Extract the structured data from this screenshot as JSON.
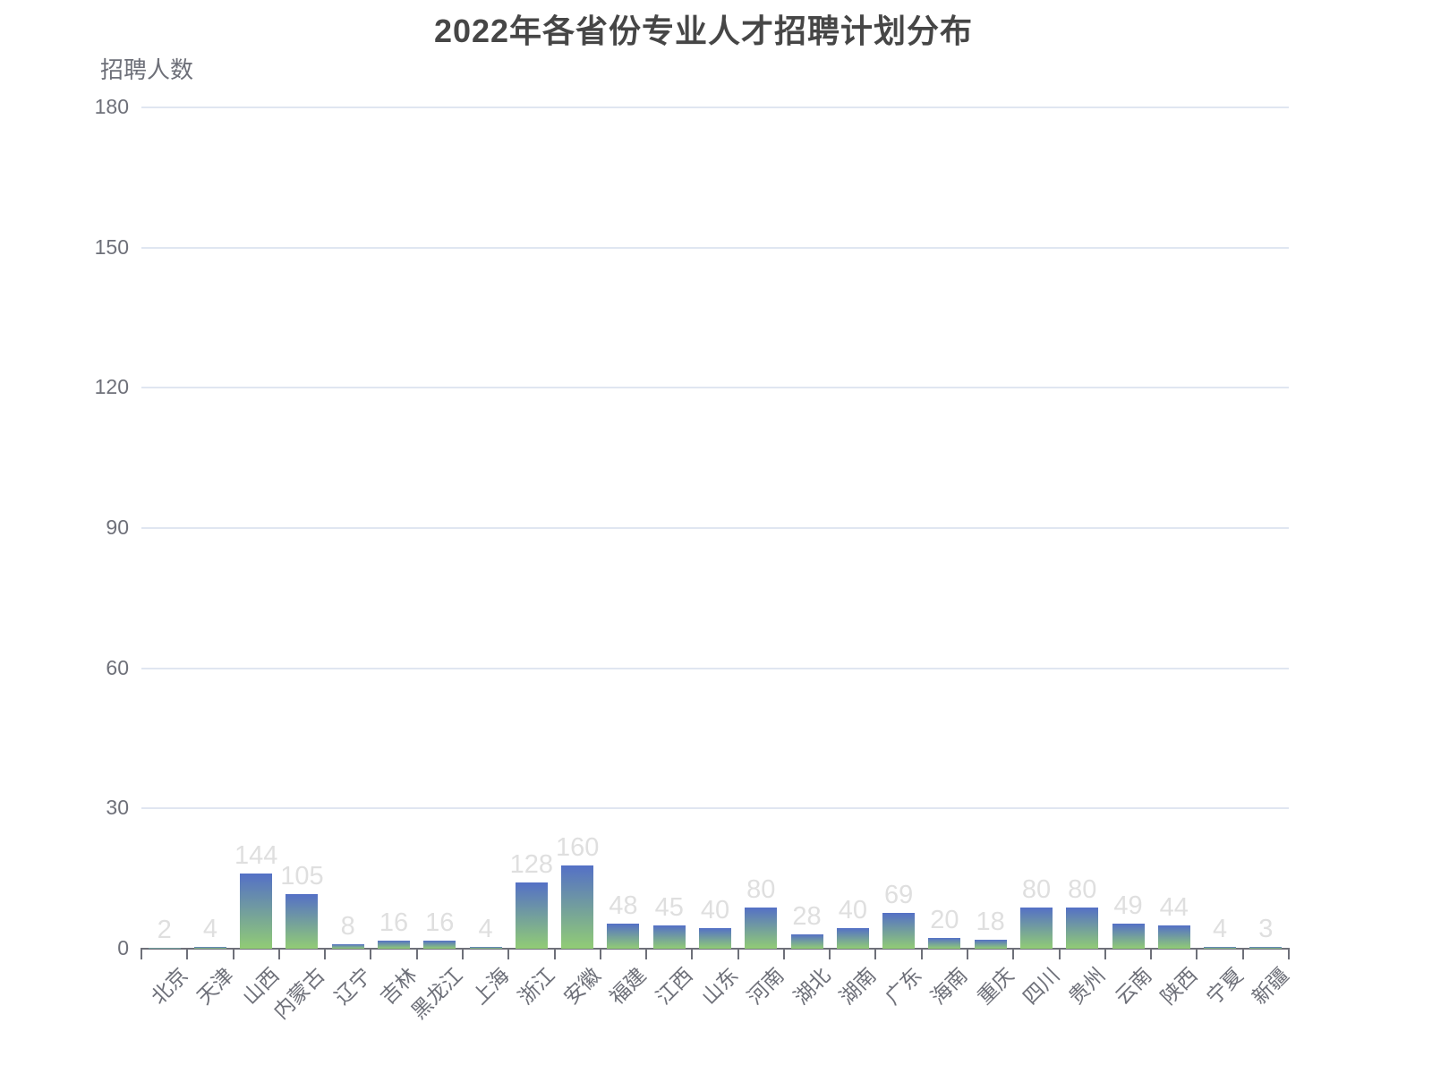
{
  "title": "2022年各省份专业人才招聘计划分布",
  "chart_data": {
    "type": "bar",
    "title": "2022年各省份专业人才招聘计划分布",
    "xlabel": "",
    "ylabel": "招聘人数",
    "categories": [
      "北京",
      "天津",
      "山西",
      "内蒙古",
      "辽宁",
      "吉林",
      "黑龙江",
      "上海",
      "浙江",
      "安徽",
      "福建",
      "江西",
      "山东",
      "河南",
      "湖北",
      "湖南",
      "广东",
      "海南",
      "重庆",
      "四川",
      "贵州",
      "云南",
      "陕西",
      "宁夏",
      "新疆"
    ],
    "values": [
      2,
      4,
      144,
      105,
      8,
      16,
      16,
      4,
      128,
      160,
      48,
      45,
      40,
      80,
      28,
      40,
      69,
      20,
      18,
      80,
      80,
      49,
      44,
      4,
      3
    ],
    "ylim": [
      0,
      180
    ],
    "yticks": [
      0,
      30,
      60,
      90,
      120,
      150,
      180
    ],
    "grid": true,
    "legend_position": "none",
    "x_label_rotation": 45,
    "bar_display_divisor": 9
  },
  "colors": {
    "background": "#FFFFFF",
    "title_text": "#464646",
    "axis_text": "#6E7079",
    "grid_line": "#E0E6F1",
    "axis_line": "#6E7079",
    "data_label": "#DFDFDF",
    "bar_gradient_top": "#5470C6",
    "bar_gradient_bottom": "#91CC75"
  }
}
